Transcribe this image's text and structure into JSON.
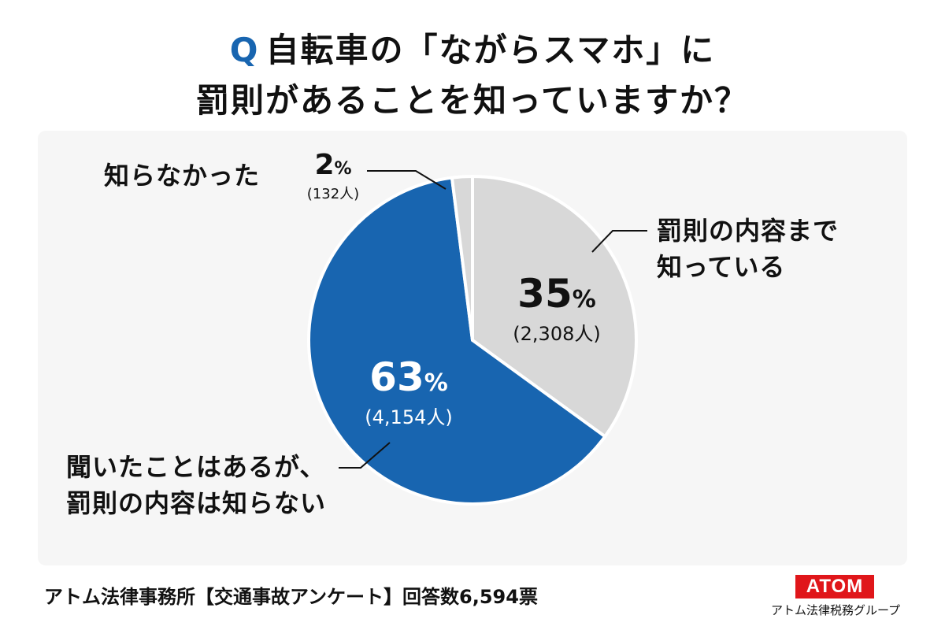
{
  "title": {
    "q_mark": "Q",
    "line1": "自転車の「ながらスマホ」に",
    "line2": "罰則があることを知っていますか？"
  },
  "chart_data": {
    "type": "pie",
    "start_angle_deg": 0,
    "direction": "clockwise",
    "slices": [
      {
        "label_lines": [
          "罰則の内容まで",
          "知っている"
        ],
        "percent": "35",
        "value": 2308,
        "count_label": "(2,308人)",
        "color": "#d8d8d8"
      },
      {
        "label_lines": [
          "聞いたことはあるが、",
          "罰則の内容は知らない"
        ],
        "percent": "63",
        "value": 4154,
        "count_label": "(4,154人)",
        "color": "#1865b0"
      },
      {
        "label_lines": [
          "知らなかった"
        ],
        "percent": "2",
        "value": 132,
        "count_label": "(132人)",
        "color": "#d8d8d8"
      }
    ],
    "percent_sign": "%",
    "total": 6594,
    "border_color": "#ffffff",
    "leader_line_color": "#111111"
  },
  "footer": {
    "source": "アトム法律事務所【交通事故アンケート】回答数6,594票"
  },
  "logo": {
    "text": "ATOM",
    "subtitle": "アトム法律税務グループ",
    "color": "#e0161a"
  }
}
